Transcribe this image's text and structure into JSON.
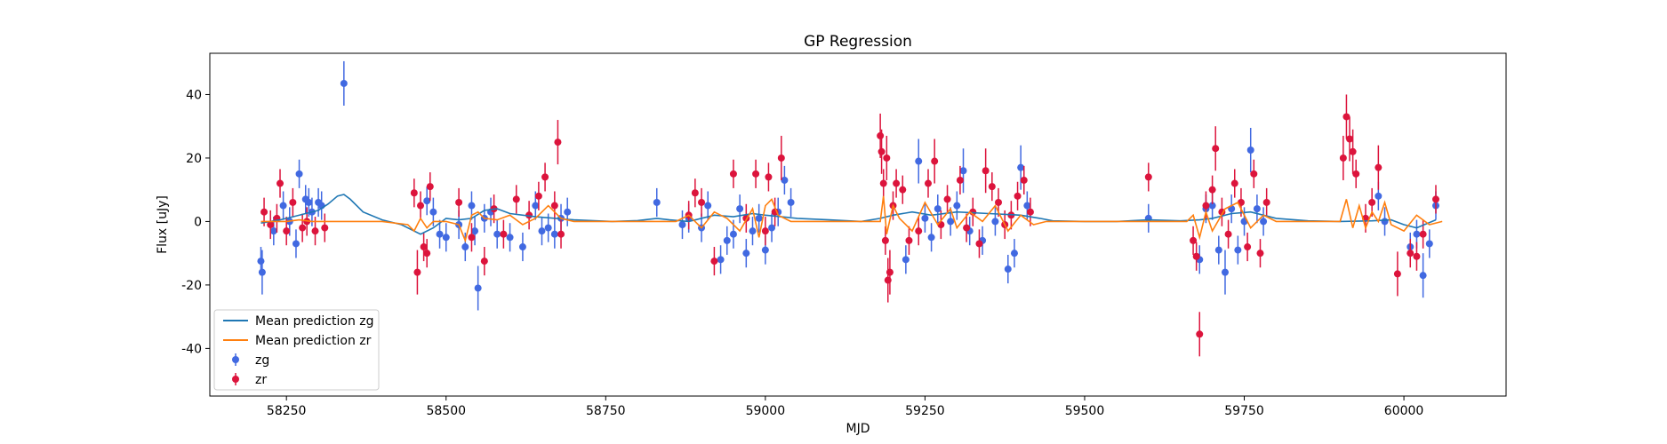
{
  "chart_data": {
    "type": "scatter",
    "title": "GP Regression",
    "xlabel": "MJD",
    "ylabel": "Flux [uJy]",
    "xlim": [
      58130,
      60160
    ],
    "ylim": [
      -55,
      53
    ],
    "x_ticks": [
      58250,
      58500,
      58750,
      59000,
      59250,
      59500,
      59750,
      60000
    ],
    "y_ticks": [
      -40,
      -20,
      0,
      20,
      40
    ],
    "grid": false,
    "legend_position": "lower-left",
    "legend": [
      "Mean prediction zg",
      "Mean prediction zr",
      "zg",
      "zr"
    ],
    "colors": {
      "zg": "#4169e1",
      "zr": "#dc143c",
      "mean_zg": "#1f77b4",
      "mean_zr": "#ff7f0e"
    },
    "series": [
      {
        "name": "Mean prediction zg",
        "kind": "line",
        "color": "#1f77b4",
        "x": [
          58210,
          58240,
          58260,
          58280,
          58300,
          58315,
          58330,
          58340,
          58350,
          58370,
          58400,
          58430,
          58460,
          58480,
          58500,
          58520,
          58540,
          58560,
          58580,
          58600,
          58640,
          58700,
          58760,
          58800,
          58830,
          58850,
          58880,
          58920,
          58950,
          58980,
          59000,
          59050,
          59100,
          59150,
          59180,
          59200,
          59230,
          59260,
          59300,
          59350,
          59400,
          59430,
          59450,
          59500,
          59550,
          59600,
          59650,
          59680,
          59700,
          59730,
          59760,
          59780,
          59800,
          59850,
          59900,
          59950,
          59980,
          60000,
          60020,
          60050
        ],
        "y": [
          -0.5,
          0.5,
          1.5,
          2.5,
          3.5,
          5.5,
          8.0,
          8.5,
          7.0,
          3.0,
          0.5,
          -1.0,
          -4.0,
          -2.0,
          1.0,
          0.5,
          1.0,
          3.5,
          4.0,
          2.5,
          1.5,
          0.5,
          0,
          0.3,
          1.0,
          0.5,
          0,
          2.0,
          1.5,
          2.5,
          2.0,
          1.0,
          0.5,
          0,
          1.0,
          2.0,
          3.0,
          2.0,
          3.0,
          2.5,
          2.0,
          1.0,
          0.2,
          0,
          0,
          0.5,
          0.2,
          0.5,
          1.0,
          2.5,
          3.0,
          2.0,
          1.0,
          0.2,
          0,
          0.2,
          0.5,
          -1.0,
          -2.0,
          0.5
        ]
      },
      {
        "name": "Mean prediction zr",
        "kind": "line",
        "color": "#ff7f0e",
        "x": [
          58210,
          58250,
          58270,
          58290,
          58310,
          58330,
          58400,
          58440,
          58450,
          58460,
          58470,
          58480,
          58500,
          58520,
          58530,
          58540,
          58550,
          58560,
          58580,
          58600,
          58620,
          58640,
          58650,
          58660,
          58680,
          58700,
          58800,
          58860,
          58880,
          58900,
          58920,
          58940,
          58960,
          58980,
          58990,
          59000,
          59010,
          59020,
          59040,
          59100,
          59180,
          59185,
          59190,
          59200,
          59210,
          59230,
          59250,
          59270,
          59290,
          59300,
          59320,
          59340,
          59360,
          59380,
          59400,
          59420,
          59440,
          59500,
          59600,
          59660,
          59670,
          59680,
          59690,
          59700,
          59720,
          59740,
          59760,
          59780,
          59800,
          59900,
          59910,
          59920,
          59930,
          59940,
          59950,
          59960,
          59970,
          59980,
          60000,
          60020,
          60040,
          60060
        ],
        "y": [
          0,
          0,
          0.5,
          0,
          0,
          0,
          0,
          -1,
          -3,
          1,
          -2,
          0,
          0,
          -1,
          -6,
          2,
          3,
          1,
          0.5,
          2,
          -1,
          1,
          3,
          5,
          1,
          0,
          0,
          0,
          2,
          -2,
          3,
          1,
          -3,
          4,
          -5,
          5,
          7,
          2,
          0,
          0,
          0,
          8,
          -4,
          5,
          1,
          -3,
          6,
          -1,
          4,
          -2,
          3,
          0,
          5,
          -3,
          2,
          -1,
          0,
          0,
          0,
          0,
          2,
          -5,
          3,
          -3,
          4,
          6,
          -2,
          2,
          0,
          0,
          7,
          -2,
          5,
          -2,
          3,
          0,
          6,
          -1,
          -3,
          2,
          -1,
          0
        ]
      },
      {
        "name": "zg",
        "kind": "errorbar",
        "color": "#4169e1",
        "x": [
          58210,
          58212,
          58230,
          58245,
          58255,
          58265,
          58270,
          58280,
          58285,
          58290,
          58300,
          58305,
          58340,
          58470,
          58480,
          58490,
          58500,
          58520,
          58530,
          58540,
          58545,
          58550,
          58560,
          58570,
          58580,
          58600,
          58620,
          58640,
          58650,
          58660,
          58670,
          58680,
          58690,
          58830,
          58870,
          58880,
          58900,
          58910,
          58930,
          58940,
          58950,
          58960,
          58970,
          58980,
          58990,
          59000,
          59010,
          59020,
          59030,
          59040,
          59220,
          59240,
          59250,
          59260,
          59270,
          59290,
          59300,
          59310,
          59320,
          59340,
          59360,
          59380,
          59390,
          59400,
          59410,
          59600,
          59680,
          59690,
          59700,
          59710,
          59720,
          59730,
          59740,
          59750,
          59760,
          59770,
          59780,
          59960,
          59970,
          60010,
          60020,
          60030,
          60040,
          60050
        ],
        "y": [
          -12.5,
          -16,
          -3,
          5,
          0,
          -7,
          15,
          7,
          6,
          3,
          6,
          5,
          43.5,
          6.5,
          3,
          -4,
          -5,
          -1,
          -8,
          5,
          -3,
          -21,
          1,
          3,
          -4,
          -5,
          -8,
          5,
          -3,
          -2,
          -4,
          1,
          3,
          6,
          -1,
          1,
          -2,
          5,
          -12,
          -6,
          -4,
          4,
          -10,
          -3,
          1,
          -9,
          -2,
          3,
          13,
          6,
          -12,
          19,
          1,
          -5,
          4,
          0,
          5,
          16,
          -3,
          -6,
          0,
          -15,
          -10,
          17,
          5,
          1,
          -12,
          4,
          5,
          -9,
          -16,
          4,
          -9,
          0,
          22.5,
          4,
          0,
          8,
          0,
          -8,
          -4,
          -17,
          -7,
          5
        ]
      },
      {
        "name": "zr",
        "kind": "errorbar",
        "color": "#dc143c",
        "x": [
          58215,
          58225,
          58235,
          58240,
          58250,
          58260,
          58275,
          58282,
          58295,
          58310,
          58450,
          58455,
          58460,
          58465,
          58470,
          58475,
          58520,
          58540,
          58560,
          58575,
          58590,
          58610,
          58630,
          58645,
          58655,
          58670,
          58675,
          58680,
          58880,
          58890,
          58900,
          58920,
          58950,
          58970,
          58985,
          59000,
          59005,
          59015,
          59025,
          59180,
          59182,
          59185,
          59188,
          59190,
          59192,
          59195,
          59200,
          59205,
          59215,
          59225,
          59240,
          59255,
          59265,
          59275,
          59285,
          59305,
          59315,
          59325,
          59335,
          59345,
          59355,
          59365,
          59375,
          59385,
          59395,
          59405,
          59415,
          59600,
          59670,
          59675,
          59680,
          59690,
          59700,
          59705,
          59715,
          59725,
          59735,
          59745,
          59755,
          59765,
          59775,
          59785,
          59905,
          59910,
          59915,
          59920,
          59925,
          59940,
          59950,
          59960,
          59990,
          60010,
          60020,
          60030,
          60050
        ],
        "y": [
          3,
          -1,
          1,
          12,
          -3,
          6,
          -2,
          0,
          -3,
          -2,
          9,
          -16,
          5,
          -8,
          -10,
          11,
          6,
          -5,
          -12.5,
          4,
          -4,
          7,
          2,
          8,
          14,
          5,
          25,
          -4,
          2,
          9,
          6,
          -12.5,
          15,
          1,
          15,
          -3,
          14,
          3,
          20,
          27,
          22,
          12,
          -6,
          20,
          -18.5,
          -16,
          5,
          12,
          10,
          -6,
          -3,
          12,
          19,
          -1,
          7,
          13,
          -2,
          3,
          -7,
          16,
          11,
          6,
          -1,
          2,
          8,
          13,
          3,
          14,
          -6,
          -11,
          -35.5,
          5,
          10,
          23,
          3,
          -4,
          12,
          6,
          -8,
          15,
          -10,
          6,
          20,
          33,
          26,
          22,
          15,
          1,
          6,
          17,
          -16.5,
          -10,
          -11,
          -4,
          7
        ]
      }
    ]
  }
}
